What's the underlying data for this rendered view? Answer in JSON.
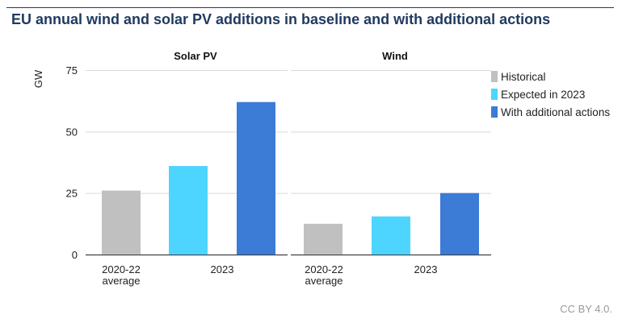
{
  "title": "EU annual wind and solar PV additions in baseline and with additional actions",
  "footer": "CC BY 4.0.",
  "colors": {
    "historical": "#c0c0c0",
    "expected": "#4dd5ff",
    "additional": "#3c7bd6",
    "title": "#1f3a5f"
  },
  "legend": [
    {
      "label": "Historical",
      "color": "#c0c0c0"
    },
    {
      "label": "Expected in 2023",
      "color": "#4dd5ff"
    },
    {
      "label": "With additional actions",
      "color": "#3c7bd6"
    }
  ],
  "chart_data": [
    {
      "type": "bar",
      "title": "Solar PV",
      "ylabel": "GW",
      "ylim": [
        0,
        75
      ],
      "yticks": [
        0,
        25,
        50,
        75
      ],
      "category_labels": [
        [
          "2020-22",
          "average"
        ],
        [
          "2023"
        ]
      ],
      "bars": [
        {
          "series": "Historical",
          "value": 26
        },
        {
          "series": "Expected in 2023",
          "value": 36
        },
        {
          "series": "With additional actions",
          "value": 62
        }
      ]
    },
    {
      "type": "bar",
      "title": "Wind",
      "ylabel": "GW",
      "ylim": [
        0,
        75
      ],
      "yticks": [
        0,
        25,
        50,
        75
      ],
      "category_labels": [
        [
          "2020-22",
          "average"
        ],
        [
          "2023"
        ]
      ],
      "bars": [
        {
          "series": "Historical",
          "value": 12.5
        },
        {
          "series": "Expected in 2023",
          "value": 15.5
        },
        {
          "series": "With additional actions",
          "value": 25
        }
      ]
    }
  ]
}
